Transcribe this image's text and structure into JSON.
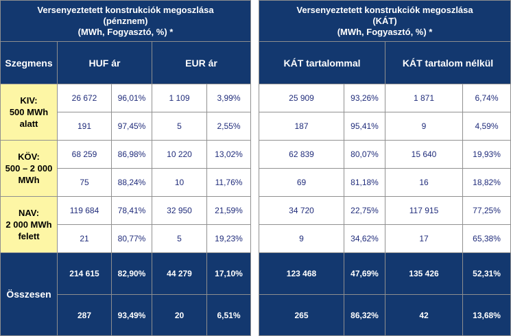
{
  "left": {
    "title_lines": [
      "Versenyeztetett konstrukciók megoszlása",
      "(pénznem)",
      "(MWh, Fogyasztó, %) *"
    ],
    "segment_header": "Szegmens",
    "col_a": "HUF ár",
    "col_b": "EUR ár",
    "segments": [
      {
        "label": [
          "KIV:",
          "500 MWh",
          "alatt"
        ],
        "rows": [
          [
            "26 672",
            "96,01%",
            "1 109",
            "3,99%"
          ],
          [
            "191",
            "97,45%",
            "5",
            "2,55%"
          ]
        ]
      },
      {
        "label": [
          "KÖV:",
          "500 – 2 000",
          "MWh"
        ],
        "rows": [
          [
            "68 259",
            "86,98%",
            "10 220",
            "13,02%"
          ],
          [
            "75",
            "88,24%",
            "10",
            "11,76%"
          ]
        ]
      },
      {
        "label": [
          "NAV:",
          "2 000 MWh",
          "felett"
        ],
        "rows": [
          [
            "119 684",
            "78,41%",
            "32 950",
            "21,59%"
          ],
          [
            "21",
            "80,77%",
            "5",
            "19,23%"
          ]
        ]
      }
    ],
    "total_label": "Összesen",
    "total_rows": [
      [
        "214 615",
        "82,90%",
        "44 279",
        "17,10%"
      ],
      [
        "287",
        "93,49%",
        "20",
        "6,51%"
      ]
    ]
  },
  "right": {
    "title_lines": [
      "Versenyeztetett konstrukciók megoszlása",
      "(KÁT)",
      "(MWh, Fogyasztó, %) *"
    ],
    "col_a": "KÁT tartalommal",
    "col_b": "KÁT tartalom nélkül",
    "rows": [
      [
        "25 909",
        "93,26%",
        "1 871",
        "6,74%"
      ],
      [
        "187",
        "95,41%",
        "9",
        "4,59%"
      ],
      [
        "62 839",
        "80,07%",
        "15 640",
        "19,93%"
      ],
      [
        "69",
        "81,18%",
        "16",
        "18,82%"
      ],
      [
        "34 720",
        "22,75%",
        "117 915",
        "77,25%"
      ],
      [
        "9",
        "34,62%",
        "17",
        "65,38%"
      ]
    ],
    "total_rows": [
      [
        "123 468",
        "47,69%",
        "135 426",
        "52,31%"
      ],
      [
        "265",
        "86,32%",
        "42",
        "13,68%"
      ]
    ]
  }
}
